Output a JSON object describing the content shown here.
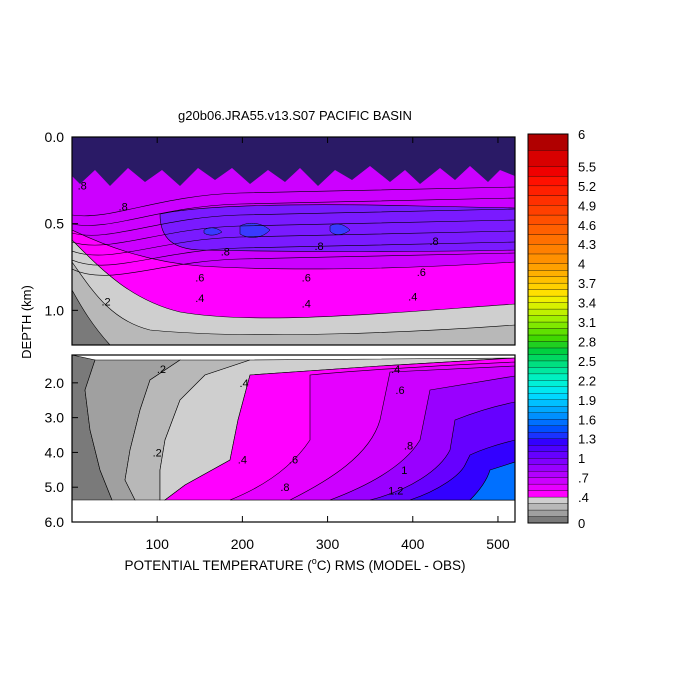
{
  "chart_data": {
    "type": "heatmap",
    "title": "g20b06.JRA55.v13.S07 PACIFIC BASIN",
    "xlabel_prefix": "POTENTIAL TEMPERATURE (",
    "xlabel_unit_sup": "o",
    "xlabel_suffix": "C) RMS (MODEL - OBS)",
    "ylabel": "DEPTH (km)",
    "xlim": [
      0,
      520
    ],
    "x_ticks": [
      100,
      200,
      300,
      400,
      500
    ],
    "x_tick_labels": [
      "100",
      "200",
      "300",
      "400",
      "500"
    ],
    "upper_panel": {
      "ylim": [
        0.0,
        1.2
      ],
      "y_ticks": [
        0.0,
        0.5,
        1.0
      ],
      "y_tick_labels": [
        "0.0",
        "0.5",
        "1.0"
      ]
    },
    "lower_panel": {
      "ylim": [
        1.2,
        6.0
      ],
      "y_ticks": [
        2.0,
        3.0,
        4.0,
        5.0,
        6.0
      ],
      "y_tick_labels": [
        "2.0",
        "3.0",
        "4.0",
        "5.0",
        "6.0"
      ]
    },
    "colorbar": {
      "levels": [
        0,
        0.1,
        0.2,
        0.3,
        0.4,
        0.5,
        0.6,
        0.7,
        0.8,
        0.9,
        1.0,
        1.1,
        1.2,
        1.3,
        1.4,
        1.5,
        1.6,
        1.7,
        1.8,
        1.9,
        2.0,
        2.1,
        2.2,
        2.3,
        2.4,
        2.5,
        2.6,
        2.7,
        2.8,
        2.9,
        3.0,
        3.1,
        3.2,
        3.3,
        3.4,
        3.5,
        3.6,
        3.7,
        3.8,
        3.9,
        4.0,
        4.15,
        4.3,
        4.45,
        4.6,
        4.75,
        4.9,
        5.05,
        5.2,
        5.35,
        5.5,
        5.75,
        6.0
      ],
      "colors": [
        "#7a7a7a",
        "#a0a0a0",
        "#b8b8b8",
        "#cfcfcf",
        "#ff00ff",
        "#e600ff",
        "#cc00ff",
        "#b300ff",
        "#9900ff",
        "#8000ff",
        "#6600ff",
        "#4d00ff",
        "#3300ff",
        "#1a33ff",
        "#0050ff",
        "#0070ff",
        "#0090ff",
        "#00a8ff",
        "#00c0ff",
        "#00d8ff",
        "#00e8f0",
        "#00f0d8",
        "#00f0c0",
        "#00e8a0",
        "#00e080",
        "#00d860",
        "#00d040",
        "#20d020",
        "#40d800",
        "#60e000",
        "#80e800",
        "#a0f000",
        "#c0f000",
        "#d8f000",
        "#f0f000",
        "#ffe000",
        "#ffd000",
        "#ffc000",
        "#ffb000",
        "#ffa000",
        "#ff9000",
        "#ff8000",
        "#ff7000",
        "#ff6000",
        "#ff5000",
        "#ff4000",
        "#ff3000",
        "#ff2000",
        "#ff1000",
        "#f00000",
        "#d80000",
        "#b00000"
      ],
      "tick_labels": [
        "0",
        ".4",
        ".7",
        "1",
        "1.3",
        "1.6",
        "1.9",
        "2.2",
        "2.5",
        "2.8",
        "3.1",
        "3.4",
        "3.7",
        "4",
        "4.3",
        "4.6",
        "4.9",
        "5.2",
        "5.5",
        "6"
      ],
      "tick_values": [
        0,
        0.4,
        0.7,
        1.0,
        1.3,
        1.6,
        1.9,
        2.2,
        2.5,
        2.8,
        3.1,
        3.4,
        3.7,
        4.0,
        4.3,
        4.6,
        4.9,
        5.2,
        5.5,
        6.0
      ]
    },
    "contour_labels": {
      "upper": [
        {
          "text": ".8",
          "x": 12,
          "y": 0.28
        },
        {
          "text": ".8",
          "x": 60,
          "y": 0.4
        },
        {
          "text": ".8",
          "x": 180,
          "y": 0.66
        },
        {
          "text": ".8",
          "x": 290,
          "y": 0.63
        },
        {
          "text": ".8",
          "x": 425,
          "y": 0.6
        },
        {
          "text": ".6",
          "x": 150,
          "y": 0.81
        },
        {
          "text": ".6",
          "x": 275,
          "y": 0.81
        },
        {
          "text": ".6",
          "x": 410,
          "y": 0.78
        },
        {
          "text": ".4",
          "x": 150,
          "y": 0.93
        },
        {
          "text": ".4",
          "x": 275,
          "y": 0.96
        },
        {
          "text": ".4",
          "x": 400,
          "y": 0.92
        },
        {
          "text": ".2",
          "x": 40,
          "y": 0.95
        }
      ],
      "lower": [
        {
          "text": ".2",
          "x": 105,
          "y": 1.6
        },
        {
          "text": ".2",
          "x": 100,
          "y": 4.0
        },
        {
          "text": ".4",
          "x": 200,
          "y": 4.2
        },
        {
          "text": ".4",
          "x": 202,
          "y": 2.0
        },
        {
          "text": ".4",
          "x": 380,
          "y": 1.6
        },
        {
          "text": ".6",
          "x": 385,
          "y": 2.2
        },
        {
          "text": ".6",
          "x": 260,
          "y": 4.2
        },
        {
          "text": ".8",
          "x": 250,
          "y": 5.0
        },
        {
          "text": ".8",
          "x": 395,
          "y": 3.8
        },
        {
          "text": "1",
          "x": 390,
          "y": 4.5
        },
        {
          "text": "1.2",
          "x": 380,
          "y": 5.1
        }
      ]
    }
  }
}
